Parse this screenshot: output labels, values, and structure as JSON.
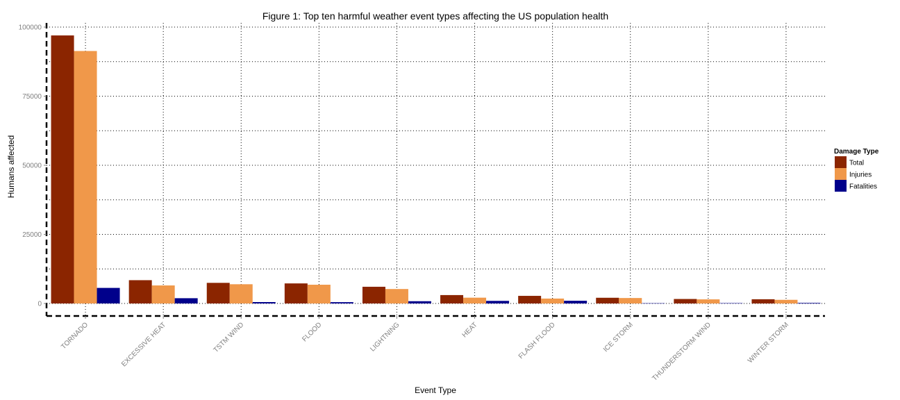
{
  "chart_data": {
    "type": "bar",
    "title": "Figure 1: Top ten harmful weather event types affecting the US population health",
    "xlabel": "Event Type",
    "ylabel": "Humans affected",
    "ylim": [
      -4500,
      100000
    ],
    "yticks": [
      0,
      25000,
      50000,
      75000,
      100000
    ],
    "grid": true,
    "legend_position": "right",
    "legend_title": "Damage Type",
    "categories": [
      "TORNADO",
      "EXCESSIVE HEAT",
      "TSTM WIND",
      "FLOOD",
      "LIGHTNING",
      "HEAT",
      "FLASH FLOOD",
      "ICE STORM",
      "THUNDERSTORM WIND",
      "WINTER STORM"
    ],
    "series": [
      {
        "name": "Total",
        "color": "#8b2500",
        "values": [
          96979,
          8428,
          7461,
          7259,
          6046,
          3037,
          2755,
          2064,
          1621,
          1527
        ]
      },
      {
        "name": "Injuries",
        "color": "#f0984a",
        "values": [
          91346,
          6525,
          6957,
          6789,
          5230,
          2100,
          1777,
          1975,
          1488,
          1321
        ]
      },
      {
        "name": "Fatalities",
        "color": "#00008b",
        "values": [
          5633,
          1903,
          504,
          470,
          816,
          937,
          978,
          89,
          133,
          206
        ]
      }
    ]
  }
}
